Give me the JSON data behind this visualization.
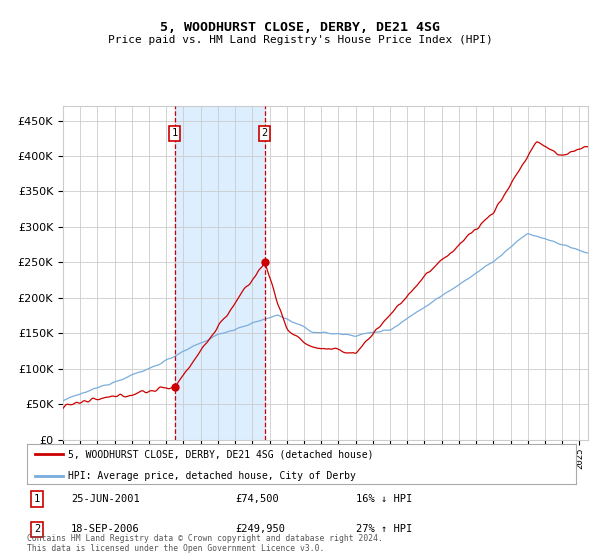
{
  "title": "5, WOODHURST CLOSE, DERBY, DE21 4SG",
  "subtitle": "Price paid vs. HM Land Registry's House Price Index (HPI)",
  "ytick_values": [
    0,
    50000,
    100000,
    150000,
    200000,
    250000,
    300000,
    350000,
    400000,
    450000
  ],
  "ylim": [
    0,
    470000
  ],
  "xlim_start": 1995.0,
  "xlim_end": 2025.5,
  "legend_line1": "5, WOODHURST CLOSE, DERBY, DE21 4SG (detached house)",
  "legend_line2": "HPI: Average price, detached house, City of Derby",
  "transaction1_date": "25-JUN-2001",
  "transaction1_price": "£74,500",
  "transaction1_hpi": "16% ↓ HPI",
  "transaction1_x": 2001.48,
  "transaction1_y": 74500,
  "transaction2_date": "18-SEP-2006",
  "transaction2_price": "£249,950",
  "transaction2_hpi": "27% ↑ HPI",
  "transaction2_x": 2006.72,
  "transaction2_y": 249950,
  "footer": "Contains HM Land Registry data © Crown copyright and database right 2024.\nThis data is licensed under the Open Government Licence v3.0.",
  "line_color_red": "#cc0000",
  "line_color_blue": "#7aaddc",
  "shade_color": "#ddeeff",
  "grid_color": "#cccccc",
  "bg_color": "#ffffff"
}
